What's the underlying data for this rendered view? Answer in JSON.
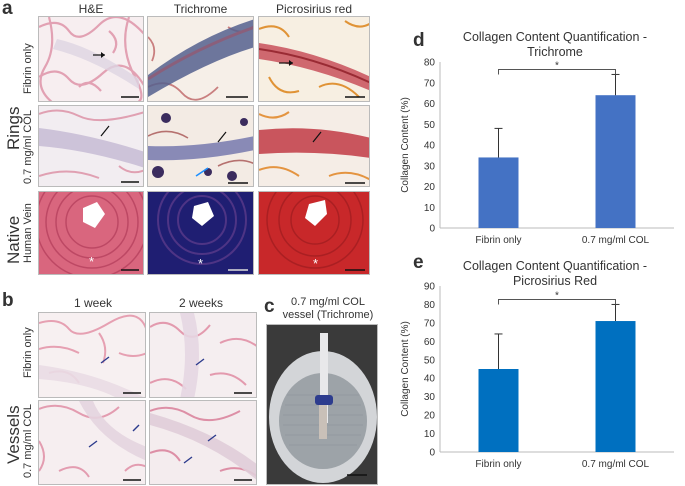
{
  "figure": {
    "panel_letters": {
      "a": "a",
      "b": "b",
      "c": "c",
      "d": "d",
      "e": "e"
    },
    "panel_a": {
      "columns": [
        "H&E",
        "Trichrome",
        "Picrosirius red"
      ],
      "group_rings": "Rings",
      "group_native": "Native",
      "rows": [
        "Fibrin only",
        "0.7 mg/ml COL",
        "Human Vein"
      ],
      "native_marker": "*"
    },
    "panel_b": {
      "columns": [
        "1 week",
        "2 weeks"
      ],
      "group": "Vessels",
      "rows": [
        "Fibrin only",
        "0.7 mg/ml COL"
      ]
    },
    "panel_c": {
      "title_line1": "0.7 mg/ml COL",
      "title_line2": "vessel (Trichrome)"
    }
  },
  "colors": {
    "bar_d": "#4472c4",
    "bar_e": "#0070c0",
    "he_pink": "#e7a6b6",
    "trichrome_blue": "#2b2f80",
    "picro_red": "#c8282a"
  },
  "chart_data": [
    {
      "type": "bar",
      "title_line1": "Collagen Content Quantification -",
      "title_line2": "Trichrome",
      "categories": [
        "Fibrin only",
        "0.7 mg/ml COL"
      ],
      "values": [
        34,
        64
      ],
      "error_upper": [
        48,
        74
      ],
      "ylabel": "Collagen Content (%)",
      "ylim": [
        0,
        80
      ],
      "yticks": [
        "0",
        "10",
        "20",
        "30",
        "40",
        "50",
        "60",
        "70",
        "80"
      ],
      "significance": "*",
      "grid": false
    },
    {
      "type": "bar",
      "title_line1": "Collagen Content Quantification -",
      "title_line2": "Picrosirius Red",
      "categories": [
        "Fibrin only",
        "0.7 mg/ml COL"
      ],
      "values": [
        45,
        71
      ],
      "error_upper": [
        64,
        80
      ],
      "ylabel": "Collagen Content (%)",
      "ylim": [
        0,
        90
      ],
      "yticks": [
        "0",
        "10",
        "20",
        "30",
        "40",
        "50",
        "60",
        "70",
        "80",
        "90"
      ],
      "significance": "*",
      "grid": false
    }
  ]
}
